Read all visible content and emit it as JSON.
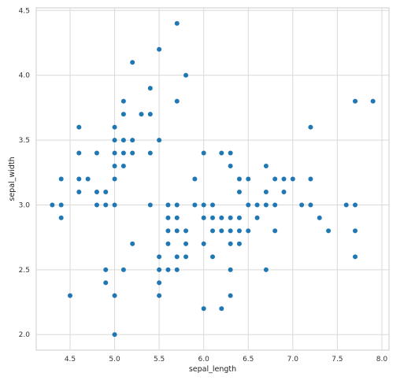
{
  "chart_data": {
    "type": "scatter",
    "xlabel": "sepal_length",
    "ylabel": "sepal_width",
    "xlim": [
      4.12,
      8.08
    ],
    "ylim": [
      1.88,
      4.52
    ],
    "xticks": [
      4.5,
      5.0,
      5.5,
      6.0,
      6.5,
      7.0,
      7.5,
      8.0
    ],
    "xtick_labels": [
      "4.5",
      "5.0",
      "5.5",
      "6.0",
      "6.5",
      "7.0",
      "7.5",
      "8.0"
    ],
    "yticks": [
      2.0,
      2.5,
      3.0,
      3.5,
      4.0,
      4.5
    ],
    "ytick_labels": [
      "2.0",
      "2.5",
      "3.0",
      "3.5",
      "4.0",
      "4.5"
    ],
    "grid": true,
    "marker_color": "#1f77b4",
    "points": [
      [
        4.3,
        3.0
      ],
      [
        4.4,
        2.9
      ],
      [
        4.4,
        3.0
      ],
      [
        4.4,
        3.2
      ],
      [
        4.5,
        2.3
      ],
      [
        4.6,
        3.1
      ],
      [
        4.6,
        3.2
      ],
      [
        4.6,
        3.4
      ],
      [
        4.6,
        3.6
      ],
      [
        4.7,
        3.2
      ],
      [
        4.8,
        3.0
      ],
      [
        4.8,
        3.1
      ],
      [
        4.8,
        3.4
      ],
      [
        4.9,
        2.4
      ],
      [
        4.9,
        2.5
      ],
      [
        4.9,
        3.0
      ],
      [
        4.9,
        3.1
      ],
      [
        5.0,
        2.0
      ],
      [
        5.0,
        2.3
      ],
      [
        5.0,
        3.0
      ],
      [
        5.0,
        3.2
      ],
      [
        5.0,
        3.3
      ],
      [
        5.0,
        3.4
      ],
      [
        5.0,
        3.5
      ],
      [
        5.0,
        3.6
      ],
      [
        5.1,
        2.5
      ],
      [
        5.1,
        3.3
      ],
      [
        5.1,
        3.4
      ],
      [
        5.1,
        3.5
      ],
      [
        5.1,
        3.7
      ],
      [
        5.1,
        3.8
      ],
      [
        5.2,
        2.7
      ],
      [
        5.2,
        3.4
      ],
      [
        5.2,
        3.5
      ],
      [
        5.2,
        4.1
      ],
      [
        5.3,
        3.7
      ],
      [
        5.4,
        3.0
      ],
      [
        5.4,
        3.4
      ],
      [
        5.4,
        3.7
      ],
      [
        5.4,
        3.9
      ],
      [
        5.5,
        2.3
      ],
      [
        5.5,
        2.4
      ],
      [
        5.5,
        2.5
      ],
      [
        5.5,
        2.6
      ],
      [
        5.5,
        3.5
      ],
      [
        5.5,
        4.2
      ],
      [
        5.6,
        2.5
      ],
      [
        5.6,
        2.7
      ],
      [
        5.6,
        2.8
      ],
      [
        5.6,
        2.9
      ],
      [
        5.6,
        3.0
      ],
      [
        5.7,
        2.5
      ],
      [
        5.7,
        2.6
      ],
      [
        5.7,
        2.8
      ],
      [
        5.7,
        2.9
      ],
      [
        5.7,
        3.0
      ],
      [
        5.7,
        3.8
      ],
      [
        5.7,
        4.4
      ],
      [
        5.8,
        2.6
      ],
      [
        5.8,
        2.7
      ],
      [
        5.8,
        2.8
      ],
      [
        5.8,
        4.0
      ],
      [
        5.9,
        3.0
      ],
      [
        5.9,
        3.2
      ],
      [
        6.0,
        2.2
      ],
      [
        6.0,
        2.7
      ],
      [
        6.0,
        2.9
      ],
      [
        6.0,
        3.0
      ],
      [
        6.0,
        3.4
      ],
      [
        6.1,
        2.6
      ],
      [
        6.1,
        2.8
      ],
      [
        6.1,
        2.9
      ],
      [
        6.1,
        3.0
      ],
      [
        6.2,
        2.2
      ],
      [
        6.2,
        2.8
      ],
      [
        6.2,
        2.9
      ],
      [
        6.2,
        3.4
      ],
      [
        6.3,
        2.3
      ],
      [
        6.3,
        2.5
      ],
      [
        6.3,
        2.7
      ],
      [
        6.3,
        2.8
      ],
      [
        6.3,
        2.9
      ],
      [
        6.3,
        3.3
      ],
      [
        6.3,
        3.4
      ],
      [
        6.4,
        2.7
      ],
      [
        6.4,
        2.8
      ],
      [
        6.4,
        2.9
      ],
      [
        6.4,
        3.1
      ],
      [
        6.4,
        3.2
      ],
      [
        6.5,
        2.8
      ],
      [
        6.5,
        3.0
      ],
      [
        6.5,
        3.2
      ],
      [
        6.6,
        2.9
      ],
      [
        6.6,
        3.0
      ],
      [
        6.7,
        2.5
      ],
      [
        6.7,
        3.0
      ],
      [
        6.7,
        3.1
      ],
      [
        6.7,
        3.3
      ],
      [
        6.8,
        2.8
      ],
      [
        6.8,
        3.0
      ],
      [
        6.8,
        3.2
      ],
      [
        6.9,
        3.1
      ],
      [
        6.9,
        3.2
      ],
      [
        7.0,
        3.2
      ],
      [
        7.1,
        3.0
      ],
      [
        7.2,
        3.0
      ],
      [
        7.2,
        3.2
      ],
      [
        7.2,
        3.6
      ],
      [
        7.3,
        2.9
      ],
      [
        7.4,
        2.8
      ],
      [
        7.6,
        3.0
      ],
      [
        7.7,
        2.6
      ],
      [
        7.7,
        2.8
      ],
      [
        7.7,
        3.0
      ],
      [
        7.7,
        3.8
      ],
      [
        7.9,
        3.8
      ]
    ]
  }
}
